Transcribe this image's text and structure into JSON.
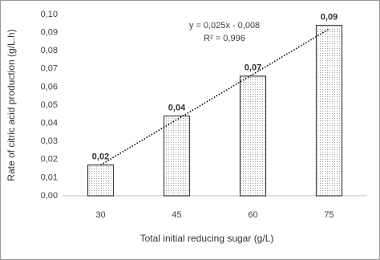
{
  "chart_data": {
    "type": "bar",
    "x_label": "Total initial reducing sugar (g/L)",
    "y_label": "Rate of citric acid production (g/L.h)",
    "categories": [
      "30",
      "45",
      "60",
      "75"
    ],
    "values": [
      0.017,
      0.044,
      0.066,
      0.094
    ],
    "value_labels": [
      "0,02",
      "0,04",
      "0,07",
      "0,09"
    ],
    "color": "#404040",
    "ylim": [
      0,
      0.1
    ],
    "yticks": [
      {
        "value": 0,
        "label": "0,00"
      },
      {
        "value": 0.01,
        "label": "0,01"
      },
      {
        "value": 0.02,
        "label": "0,02"
      },
      {
        "value": 0.03,
        "label": "0,03"
      },
      {
        "value": 0.04,
        "label": "0,04"
      },
      {
        "value": 0.05,
        "label": "0,05"
      },
      {
        "value": 0.06,
        "label": "0,06"
      },
      {
        "value": 0.07,
        "label": "0,07"
      },
      {
        "value": 0.08,
        "label": "0,08"
      },
      {
        "value": 0.09,
        "label": "0,09"
      },
      {
        "value": 0.1,
        "label": "0,10"
      }
    ],
    "grid": false,
    "trend_line": {
      "values": [
        0.017,
        0.042,
        0.067,
        0.092
      ],
      "color": "#000000"
    },
    "annotations": [
      "y = 0,025x - 0,008",
      "R² = 0,996"
    ]
  }
}
